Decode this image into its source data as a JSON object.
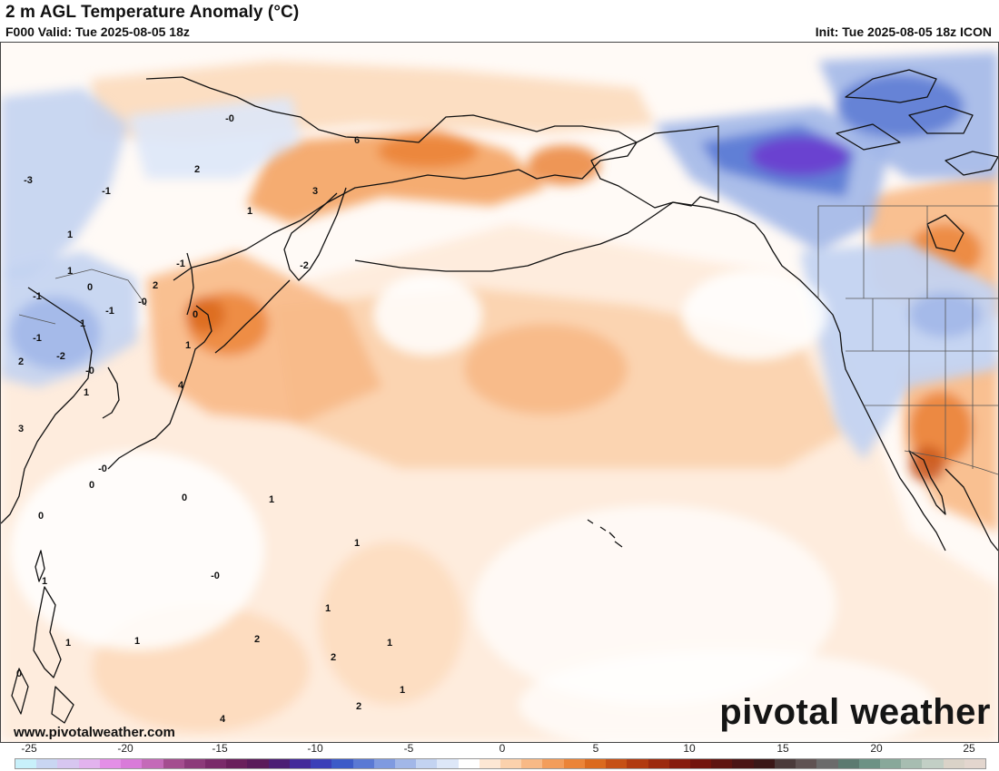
{
  "header": {
    "title": "2 m AGL Temperature Anomaly (°C)",
    "valid": "F000 Valid: Tue 2025-08-05 18z",
    "init": "Init: Tue 2025-08-05 18z ICON"
  },
  "branding": {
    "watermark": "pivotal weather",
    "url": "www.pivotalweather.com"
  },
  "colorbar": {
    "tick_labels": [
      "-25",
      "-20",
      "-15",
      "-10",
      "-5",
      "0",
      "5",
      "10",
      "15",
      "20",
      "25"
    ],
    "colors": [
      "#c8f0fa",
      "#c9d6f2",
      "#d7c6f0",
      "#e2b3ee",
      "#e38fe6",
      "#d97bd9",
      "#c46ab8",
      "#a44d8f",
      "#8c3a7a",
      "#7a2a6a",
      "#6a1f5c",
      "#5a1a5a",
      "#4c1e74",
      "#432a9a",
      "#3b3fb8",
      "#3c5bc8",
      "#5a79d4",
      "#7f9ae0",
      "#a2b7e8",
      "#c3d3f1",
      "#dde7f8",
      "#ffffff",
      "#fde7d4",
      "#fbd1ac",
      "#f8b986",
      "#f39d5b",
      "#eb8438",
      "#db6a1e",
      "#c65015",
      "#b13a10",
      "#9c2a0e",
      "#871c0d",
      "#73140c",
      "#5e1410",
      "#4a1414",
      "#3a1818",
      "#4a3a3a",
      "#5f5252",
      "#6b6b6b",
      "#5c7a70",
      "#6c9285",
      "#88a89a",
      "#a7bdb1",
      "#c2cfc5",
      "#dad3c8",
      "#e3d6ce"
    ]
  },
  "map_values": [
    "-0",
    "6",
    "2",
    "-3",
    "-1",
    "3",
    "1",
    "1",
    "1",
    "-2",
    "-1",
    "0",
    "-0",
    "-1",
    "2",
    "1",
    "0",
    "-1",
    "-1",
    "-2",
    "1",
    "-0",
    "1",
    "2",
    "4",
    "3",
    "-0",
    "0",
    "0",
    "0",
    "1",
    "1",
    "-0",
    "1",
    "1",
    "1",
    "2",
    "1",
    "1",
    "0",
    "2",
    "2",
    "1",
    "4"
  ],
  "colors": {
    "warm_light": "#fde7d4",
    "warm_mid": "#f8b986",
    "warm_strong": "#eb8438",
    "warm_dark": "#c65015",
    "cool_light": "#dde7f8",
    "cool_mid": "#a2b7e8",
    "cool_strong": "#5a79d4",
    "cool_dark": "#6a3fd0"
  }
}
